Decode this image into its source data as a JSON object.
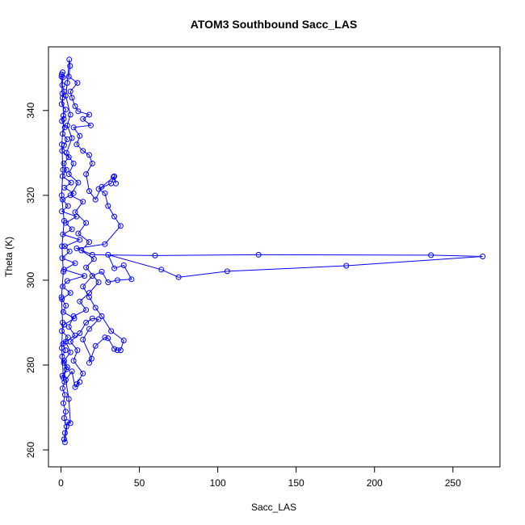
{
  "chart_data": {
    "type": "scatter",
    "title": "ATOM3 Southbound Sacc_LAS",
    "xlabel": "Sacc_LAS",
    "ylabel": "Theta (K)",
    "xlim": [
      -8,
      280
    ],
    "ylim": [
      256,
      355
    ],
    "xticks": [
      0,
      50,
      100,
      150,
      200,
      250
    ],
    "yticks": [
      260,
      280,
      300,
      320,
      340
    ],
    "grid": false,
    "legend": "none",
    "series_color": "#0000ff",
    "marker": "open-circle",
    "connected": true,
    "series": [
      {
        "points": [
          [
            0.5,
            348.5
          ],
          [
            1.2,
            347.8
          ],
          [
            0.8,
            346.0
          ],
          [
            2.0,
            344.5
          ],
          [
            1.0,
            343.0
          ],
          [
            0.4,
            341.5
          ],
          [
            3.0,
            340.2
          ],
          [
            1.5,
            338.8
          ],
          [
            0.6,
            337.5
          ],
          [
            2.4,
            336.0
          ],
          [
            1.0,
            334.5
          ],
          [
            4.0,
            333.2
          ],
          [
            2.0,
            331.8
          ],
          [
            0.7,
            330.5
          ],
          [
            5.0,
            329.0
          ],
          [
            1.8,
            327.5
          ],
          [
            3.5,
            326.0
          ],
          [
            0.9,
            324.5
          ],
          [
            6.5,
            323.0
          ],
          [
            2.2,
            321.8
          ],
          [
            8.0,
            320.5
          ],
          [
            1.0,
            319.0
          ],
          [
            4.5,
            317.5
          ],
          [
            0.5,
            316.2
          ],
          [
            10.0,
            315.0
          ],
          [
            3.0,
            313.5
          ],
          [
            7.0,
            312.0
          ],
          [
            1.2,
            310.8
          ],
          [
            12.0,
            309.5
          ],
          [
            2.5,
            308.0
          ],
          [
            5.5,
            306.8
          ],
          [
            0.8,
            305.2
          ],
          [
            9.0,
            304.0
          ],
          [
            2.0,
            302.5
          ],
          [
            15.0,
            301.0
          ],
          [
            4.0,
            299.8
          ],
          [
            1.0,
            298.5
          ],
          [
            6.0,
            297.0
          ],
          [
            0.6,
            295.5
          ],
          [
            3.2,
            294.0
          ],
          [
            1.5,
            292.5
          ],
          [
            8.5,
            291.0
          ],
          [
            2.0,
            289.5
          ],
          [
            0.5,
            288.0
          ],
          [
            4.5,
            286.5
          ],
          [
            1.2,
            285.0
          ],
          [
            2.8,
            283.5
          ],
          [
            0.7,
            282.0
          ],
          [
            1.8,
            280.5
          ],
          [
            3.5,
            279.0
          ],
          [
            0.9,
            277.5
          ],
          [
            2.2,
            276.0
          ],
          [
            1.0,
            274.5
          ],
          [
            2.5,
            273.0
          ],
          [
            1.5,
            271.0
          ],
          [
            3.0,
            269.0
          ],
          [
            2.0,
            267.5
          ],
          [
            3.5,
            265.5
          ],
          [
            2.5,
            264.0
          ],
          [
            2.0,
            262.5
          ],
          [
            2.5,
            261.8
          ],
          [
            4.0,
            266.5
          ],
          [
            6.0,
            266.3
          ],
          [
            5.0,
            272.0
          ],
          [
            3.0,
            276.5
          ],
          [
            7.0,
            278.5
          ],
          [
            9.0,
            274.8
          ],
          [
            12.0,
            276.0
          ],
          [
            10.0,
            275.5
          ],
          [
            14.0,
            278.0
          ],
          [
            8.0,
            281.0
          ],
          [
            10.5,
            283.5
          ],
          [
            6.0,
            285.5
          ],
          [
            12.0,
            287.5
          ],
          [
            16.0,
            290.0
          ],
          [
            20.0,
            291.0
          ],
          [
            24.0,
            290.8
          ],
          [
            18.0,
            288.5
          ],
          [
            14.0,
            286.0
          ],
          [
            19.5,
            281.5
          ],
          [
            18.0,
            280.5
          ],
          [
            22.0,
            284.5
          ],
          [
            28.0,
            286.5
          ],
          [
            30.0,
            286.3
          ],
          [
            34.0,
            283.8
          ],
          [
            36.0,
            283.5
          ],
          [
            38.0,
            283.5
          ],
          [
            40.0,
            285.8
          ],
          [
            32.0,
            288.0
          ],
          [
            26.0,
            291.5
          ],
          [
            22.0,
            293.5
          ],
          [
            18.0,
            296.0
          ],
          [
            14.0,
            298.5
          ],
          [
            20.0,
            301.0
          ],
          [
            26.0,
            302.0
          ],
          [
            30.0,
            299.5
          ],
          [
            36.0,
            300.0
          ],
          [
            45.0,
            300.2
          ],
          [
            40.0,
            303.5
          ],
          [
            34.0,
            302.8
          ],
          [
            30.0,
            306.0
          ],
          [
            64.0,
            302.5
          ],
          [
            75.0,
            300.7
          ],
          [
            106.0,
            302.1
          ],
          [
            182.0,
            303.4
          ],
          [
            269.0,
            305.6
          ],
          [
            236.0,
            305.9
          ],
          [
            126.0,
            306.0
          ],
          [
            60.0,
            305.8
          ],
          [
            20.0,
            306.0
          ],
          [
            10.0,
            307.5
          ],
          [
            28.0,
            308.5
          ],
          [
            38.0,
            312.8
          ],
          [
            34.0,
            315.0
          ],
          [
            30.0,
            317.5
          ],
          [
            28.0,
            320.5
          ],
          [
            24.0,
            321.5
          ],
          [
            32.0,
            322.8
          ],
          [
            34.0,
            324.5
          ],
          [
            35.0,
            322.8
          ],
          [
            33.5,
            324.3
          ],
          [
            26.0,
            322.0
          ],
          [
            22.0,
            319.0
          ],
          [
            18.0,
            321.0
          ],
          [
            16.0,
            325.0
          ],
          [
            20.0,
            327.5
          ],
          [
            18.0,
            329.5
          ],
          [
            14.0,
            330.5
          ],
          [
            10.0,
            332.0
          ],
          [
            12.0,
            334.0
          ],
          [
            8.0,
            336.0
          ],
          [
            19.0,
            336.5
          ],
          [
            14.0,
            338.0
          ],
          [
            18.0,
            339.0
          ],
          [
            11.0,
            339.8
          ],
          [
            9.0,
            341.0
          ],
          [
            7.0,
            343.0
          ],
          [
            6.0,
            344.5
          ],
          [
            10.5,
            346.5
          ],
          [
            5.0,
            348.0
          ],
          [
            5.8,
            350.5
          ],
          [
            5.3,
            352.0
          ],
          [
            4.0,
            346.5
          ],
          [
            3.0,
            343.5
          ],
          [
            6.0,
            339.0
          ],
          [
            4.0,
            336.5
          ],
          [
            7.0,
            333.5
          ],
          [
            3.5,
            330.0
          ],
          [
            8.0,
            327.5
          ],
          [
            5.0,
            325.0
          ],
          [
            11.0,
            323.0
          ],
          [
            6.0,
            320.0
          ],
          [
            14.0,
            318.5
          ],
          [
            9.0,
            316.0
          ],
          [
            16.0,
            313.5
          ],
          [
            11.0,
            311.0
          ],
          [
            18.0,
            309.0
          ],
          [
            13.0,
            307.0
          ],
          [
            21.0,
            305.0
          ],
          [
            16.0,
            303.0
          ],
          [
            24.0,
            299.5
          ],
          [
            18.0,
            297.0
          ],
          [
            12.0,
            295.0
          ],
          [
            16.0,
            293.0
          ],
          [
            8.0,
            291.5
          ],
          [
            5.0,
            289.0
          ],
          [
            9.0,
            287.0
          ],
          [
            3.0,
            285.5
          ],
          [
            6.0,
            283.0
          ],
          [
            2.0,
            281.0
          ],
          [
            4.0,
            279.5
          ],
          [
            1.5,
            277.0
          ],
          [
            0.5,
            284.0
          ],
          [
            1.0,
            290.0
          ],
          [
            0.3,
            296.0
          ],
          [
            1.5,
            302.0
          ],
          [
            0.6,
            308.0
          ],
          [
            2.0,
            314.0
          ],
          [
            0.4,
            320.0
          ],
          [
            1.2,
            326.0
          ],
          [
            0.5,
            332.0
          ],
          [
            1.8,
            338.0
          ],
          [
            0.8,
            344.0
          ],
          [
            0.3,
            348.0
          ],
          [
            1.0,
            349.0
          ]
        ]
      }
    ]
  }
}
